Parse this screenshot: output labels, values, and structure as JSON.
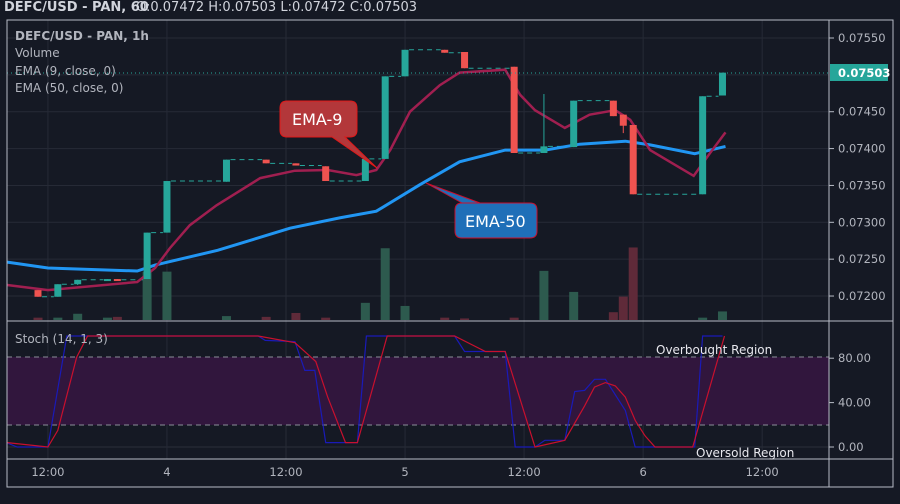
{
  "header": {
    "title": "DEFC/USD - PAN, 60",
    "ohlc": "O:0.07472 H:0.07503 L:0.07472 C:0.07503"
  },
  "legend": {
    "symbol": "DEFC/USD - PAN, 1h",
    "volume": "Volume",
    "ema9": "EMA (9, close, 0)",
    "ema50": "EMA (50, close, 0)",
    "stoch": "Stoch (14, 1, 3)"
  },
  "annotations": {
    "ema9_label": "EMA-9",
    "ema50_label": "EMA-50",
    "overbought": "Overbought Region",
    "oversold": "Oversold Region"
  },
  "colors": {
    "background": "#151924",
    "up": "#26a69a",
    "down": "#ef5350",
    "volume_up": "#2d5a4e",
    "volume_down": "#5f2a39",
    "ema9": "#a01f50",
    "ema50": "#2196f3",
    "stoch_k": "#1a1ab8",
    "stoch_d": "#c8102e",
    "band": "#31163d",
    "price_tag": "#26a69a"
  },
  "price_axis": {
    "ticks": [
      "0.07550",
      "0.07450",
      "0.07400",
      "0.07350",
      "0.07300",
      "0.07250",
      "0.07200"
    ],
    "last_price": "0.07503"
  },
  "stoch_axis": {
    "ticks": [
      "80.00",
      "40.00",
      "0.00"
    ]
  },
  "time_axis": {
    "ticks": [
      {
        "label": "12:00",
        "t": 1
      },
      {
        "label": "4",
        "t": 13
      },
      {
        "label": "12:00",
        "t": 25
      },
      {
        "label": "5",
        "t": 37
      },
      {
        "label": "12:00",
        "t": 49
      },
      {
        "label": "6",
        "t": 61
      },
      {
        "label": "12:00",
        "t": 73
      }
    ]
  },
  "chart_data": {
    "type": "candlestick",
    "interval": "1h",
    "price_range": [
      0.0716,
      0.0758
    ],
    "candles": [
      {
        "t": 0,
        "o": 0.07208,
        "h": 0.07208,
        "l": 0.07199,
        "c": 0.07199,
        "v": 3
      },
      {
        "t": 2,
        "o": 0.07199,
        "h": 0.07216,
        "l": 0.07199,
        "c": 0.07216,
        "v": 3
      },
      {
        "t": 4,
        "o": 0.07216,
        "h": 0.07222,
        "l": 0.07215,
        "c": 0.07222,
        "v": 8
      },
      {
        "t": 7,
        "o": 0.07222,
        "h": 0.07223,
        "l": 0.07222,
        "c": 0.07223,
        "v": 3
      },
      {
        "t": 8,
        "o": 0.07223,
        "h": 0.07223,
        "l": 0.07222,
        "c": 0.07222,
        "v": 4
      },
      {
        "t": 11,
        "o": 0.07223,
        "h": 0.07286,
        "l": 0.07223,
        "c": 0.07286,
        "v": 62
      },
      {
        "t": 13,
        "o": 0.07286,
        "h": 0.07356,
        "l": 0.07286,
        "c": 0.07356,
        "v": 62
      },
      {
        "t": 19,
        "o": 0.07355,
        "h": 0.07385,
        "l": 0.07355,
        "c": 0.07385,
        "v": 5
      },
      {
        "t": 23,
        "o": 0.07385,
        "h": 0.07385,
        "l": 0.0738,
        "c": 0.0738,
        "v": 4
      },
      {
        "t": 26,
        "o": 0.0738,
        "h": 0.0738,
        "l": 0.07377,
        "c": 0.07377,
        "v": 9
      },
      {
        "t": 29,
        "o": 0.07376,
        "h": 0.07376,
        "l": 0.07356,
        "c": 0.07356,
        "v": 3
      },
      {
        "t": 33,
        "o": 0.07356,
        "h": 0.07386,
        "l": 0.07356,
        "c": 0.07386,
        "v": 22
      },
      {
        "t": 35,
        "o": 0.07386,
        "h": 0.07498,
        "l": 0.07386,
        "c": 0.07498,
        "v": 92
      },
      {
        "t": 37,
        "o": 0.07498,
        "h": 0.07534,
        "l": 0.07498,
        "c": 0.07534,
        "v": 18
      },
      {
        "t": 41,
        "o": 0.07534,
        "h": 0.07534,
        "l": 0.0753,
        "c": 0.0753,
        "v": 3
      },
      {
        "t": 43,
        "o": 0.07531,
        "h": 0.07531,
        "l": 0.07509,
        "c": 0.07509,
        "v": 2
      },
      {
        "t": 48,
        "o": 0.07511,
        "h": 0.07511,
        "l": 0.07394,
        "c": 0.07394,
        "v": 3
      },
      {
        "t": 51,
        "o": 0.07394,
        "h": 0.07474,
        "l": 0.07394,
        "c": 0.07403,
        "v": 63
      },
      {
        "t": 54,
        "o": 0.07402,
        "h": 0.07465,
        "l": 0.07402,
        "c": 0.07465,
        "v": 36
      },
      {
        "t": 58,
        "o": 0.07465,
        "h": 0.07465,
        "l": 0.07444,
        "c": 0.07444,
        "v": 10
      },
      {
        "t": 59,
        "o": 0.07446,
        "h": 0.07446,
        "l": 0.07421,
        "c": 0.07431,
        "v": 30
      },
      {
        "t": 60,
        "o": 0.07432,
        "h": 0.07432,
        "l": 0.07338,
        "c": 0.07338,
        "v": 93
      },
      {
        "t": 67,
        "o": 0.07338,
        "h": 0.07471,
        "l": 0.07338,
        "c": 0.07471,
        "v": 3
      },
      {
        "t": 69,
        "o": 0.07472,
        "h": 0.07503,
        "l": 0.07472,
        "c": 0.07503,
        "v": 11
      }
    ],
    "ema9": [
      [
        -3.1,
        0.07215
      ],
      [
        -0.8,
        0.07211
      ],
      [
        1,
        0.07208
      ],
      [
        10,
        0.07219
      ],
      [
        11.8,
        0.07238
      ],
      [
        13.3,
        0.07265
      ],
      [
        15.3,
        0.07296
      ],
      [
        18,
        0.07323
      ],
      [
        22.4,
        0.0736
      ],
      [
        25.9,
        0.0737
      ],
      [
        29.2,
        0.07371
      ],
      [
        32.1,
        0.07364
      ],
      [
        34.1,
        0.07371
      ],
      [
        35.5,
        0.07398
      ],
      [
        37.5,
        0.0745
      ],
      [
        40.5,
        0.07486
      ],
      [
        42.5,
        0.07503
      ],
      [
        47.1,
        0.07507
      ],
      [
        48.6,
        0.07473
      ],
      [
        50.1,
        0.07452
      ],
      [
        53.1,
        0.07428
      ],
      [
        55.6,
        0.07446
      ],
      [
        58.2,
        0.07452
      ],
      [
        59.7,
        0.07439
      ],
      [
        61.7,
        0.07398
      ],
      [
        64.7,
        0.07374
      ],
      [
        66.1,
        0.07363
      ],
      [
        67.7,
        0.07393
      ],
      [
        69.3,
        0.07422
      ]
    ],
    "ema50": [
      [
        -3.1,
        0.07246
      ],
      [
        1,
        0.07238
      ],
      [
        10,
        0.07234
      ],
      [
        11.8,
        0.07242
      ],
      [
        18.1,
        0.07262
      ],
      [
        25.4,
        0.07292
      ],
      [
        30.4,
        0.07306
      ],
      [
        34.1,
        0.07315
      ],
      [
        38.5,
        0.07351
      ],
      [
        42.5,
        0.07382
      ],
      [
        47.1,
        0.07398
      ],
      [
        51.1,
        0.07398
      ],
      [
        54.6,
        0.07406
      ],
      [
        59.2,
        0.0741
      ],
      [
        61.7,
        0.07405
      ],
      [
        66.2,
        0.07393
      ],
      [
        69.3,
        0.07403
      ]
    ],
    "stoch": {
      "range": [
        0,
        100
      ],
      "overbought": 80,
      "oversold": 20,
      "k": [
        [
          -3.1,
          3.6
        ],
        [
          -2.1,
          0
        ],
        [
          1,
          0
        ],
        [
          2.9,
          100
        ],
        [
          22.2,
          100
        ],
        [
          22.9,
          96
        ],
        [
          25.9,
          95
        ],
        [
          26.9,
          69
        ],
        [
          27.9,
          69
        ],
        [
          29,
          4
        ],
        [
          32.2,
          4
        ],
        [
          33.1,
          100
        ],
        [
          42,
          100
        ],
        [
          43,
          86
        ],
        [
          47.1,
          86
        ],
        [
          48.1,
          0
        ],
        [
          50.1,
          0
        ],
        [
          51.1,
          6
        ],
        [
          53.1,
          6
        ],
        [
          54.1,
          50
        ],
        [
          55.1,
          51
        ],
        [
          56.1,
          61
        ],
        [
          57.2,
          61
        ],
        [
          59.2,
          33
        ],
        [
          60.2,
          0
        ],
        [
          66.2,
          0
        ],
        [
          67,
          100
        ],
        [
          69,
          100
        ]
      ],
      "d": [
        [
          -3.1,
          4
        ],
        [
          1,
          0
        ],
        [
          2,
          15
        ],
        [
          3.9,
          81
        ],
        [
          5,
          100
        ],
        [
          22.2,
          100
        ],
        [
          25.9,
          94
        ],
        [
          28,
          77
        ],
        [
          29.2,
          45
        ],
        [
          31,
          4
        ],
        [
          32.2,
          4
        ],
        [
          35.2,
          100
        ],
        [
          42,
          100
        ],
        [
          45.1,
          86
        ],
        [
          47.1,
          86
        ],
        [
          50.1,
          0
        ],
        [
          53.1,
          6
        ],
        [
          55.1,
          37
        ],
        [
          56.1,
          54
        ],
        [
          57.2,
          58
        ],
        [
          58.2,
          55
        ],
        [
          59.2,
          45
        ],
        [
          60.2,
          24
        ],
        [
          61.2,
          10
        ],
        [
          62.2,
          0
        ],
        [
          66,
          0
        ],
        [
          69.2,
          100
        ]
      ]
    }
  }
}
